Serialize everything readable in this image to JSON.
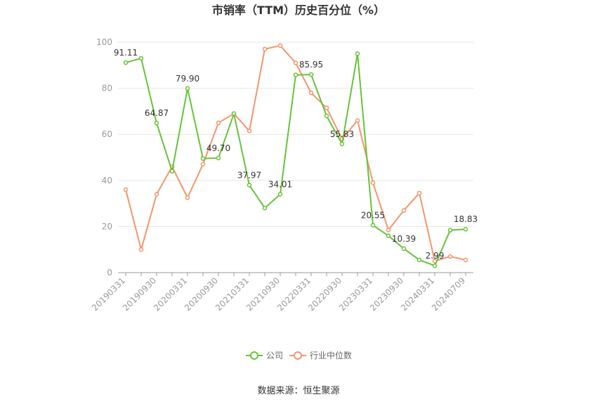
{
  "chart_data": {
    "type": "line",
    "title": "市销率（TTM）历史百分位（%）",
    "source": "数据来源：恒生聚源",
    "ylim": [
      0,
      100
    ],
    "yticks": [
      0,
      20,
      40,
      60,
      80,
      100
    ],
    "grid": true,
    "legend_position": "bottom-center",
    "x_tick_labels": [
      "20190331",
      "20190930",
      "20200331",
      "20200930",
      "20210331",
      "20210930",
      "20220331",
      "20220930",
      "20230331",
      "20230930",
      "20240331",
      "20240709"
    ],
    "x": [
      "20190331",
      "20190630",
      "20190930",
      "20191231",
      "20200331",
      "20200630",
      "20200930",
      "20201231",
      "20210331",
      "20210630",
      "20210930",
      "20211231",
      "20220331",
      "20220630",
      "20220930",
      "20221231",
      "20230331",
      "20230630",
      "20230930",
      "20231231",
      "20240331",
      "20240630",
      "20240709"
    ],
    "series": [
      {
        "name": "公司",
        "color": "#67c23a",
        "values": [
          91.11,
          93.0,
          64.87,
          44.0,
          79.9,
          49.5,
          49.7,
          69.0,
          37.97,
          28.0,
          34.01,
          85.8,
          85.95,
          68.0,
          55.83,
          95.0,
          20.55,
          16.0,
          10.39,
          5.5,
          2.99,
          18.4,
          18.83
        ],
        "labels": {
          "0": "91.11",
          "2": "64.87",
          "4": "79.90",
          "6": "49.70",
          "8": "37.97",
          "10": "34.01",
          "12": "85.95",
          "14": "55.83",
          "16": "20.55",
          "18": "10.39",
          "20": "2.99",
          "22": "18.83"
        }
      },
      {
        "name": "行业中位数",
        "color": "#f4956b",
        "values": [
          36.0,
          10.0,
          34.0,
          46.0,
          32.5,
          47.0,
          65.0,
          69.0,
          61.5,
          97.0,
          98.5,
          91.0,
          78.0,
          71.5,
          58.0,
          66.0,
          39.0,
          18.5,
          27.0,
          34.5,
          5.0,
          7.0,
          5.5
        ],
        "labels": {}
      }
    ]
  }
}
